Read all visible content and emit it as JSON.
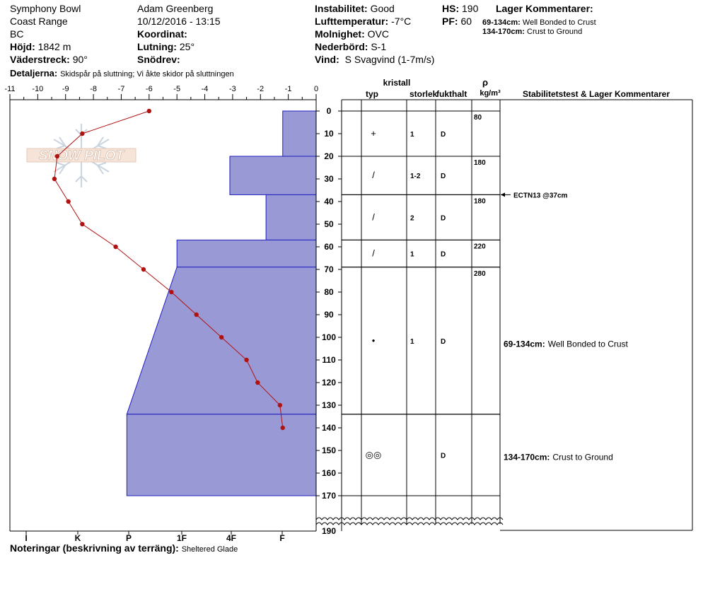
{
  "header": {
    "location": "Symphony Bowl",
    "range": "Coast Range",
    "state": "BC",
    "elevation_label": "Höjd:",
    "elevation_value": "1842 m",
    "aspect_label": "Väderstreck:",
    "aspect_value": "90°",
    "details_label": "Detaljerna:",
    "details_value": "Skidspår på sluttning;  Vi åkte skidor på sluttningen",
    "observer": "Adam Greenberg",
    "datetime": "10/12/2016 - 13:15",
    "coord_label": "Koordinat:",
    "slope_label": "Lutning:",
    "slope_value": "25°",
    "drift_label": "Snödrev:",
    "stability_label": "Instabilitet:",
    "stability_value": "Good",
    "airtemp_label": "Lufttemperatur:",
    "airtemp_value": "-7°C",
    "sky_label": "Molnighet:",
    "sky_value": "OVC",
    "precip_label": "Nederbörd:",
    "precip_value": "S-1",
    "wind_label": "Vind:",
    "wind_value": "S Svagvind (1-7m/s)",
    "hs_label": "HS:",
    "hs_value": "190",
    "pf_label": "PF:",
    "pf_value": "60",
    "layer_comments_label": "Lager Kommentarer:",
    "layer_comments": [
      {
        "range": "69-134cm:",
        "text": "Well Bonded to Crust"
      },
      {
        "range": "134-170cm:",
        "text": "Crust to Ground"
      }
    ]
  },
  "footer": {
    "notes_label": "Noteringar (beskrivning av terräng):",
    "notes_value": "Sheltered Glade"
  },
  "logo": {
    "text": "SNOW PILOT"
  },
  "columns": {
    "kristall": "kristall",
    "typ": "typ",
    "storlek": "storlek",
    "fukthalt": "fukthalt",
    "rho": "ρ",
    "density_unit": "kg/m³",
    "stability_header": "Stabilitetstest & Lager Kommentarer"
  },
  "chart_data": {
    "type": "line",
    "temperature_axis": {
      "range": [
        -11,
        0
      ],
      "ticks": [
        "-11",
        "-10",
        "-9",
        "-8",
        "-7",
        "-6",
        "-5",
        "-4",
        "-3",
        "-2",
        "-1",
        "0"
      ]
    },
    "depth_axis": {
      "range": [
        0,
        190
      ],
      "ticks": [
        "0",
        "10",
        "20",
        "30",
        "40",
        "50",
        "60",
        "70",
        "80",
        "90",
        "100",
        "110",
        "120",
        "130",
        "140",
        "150",
        "160",
        "170",
        "190"
      ]
    },
    "hardness_axis": {
      "ticks": [
        "I",
        "K",
        "P",
        "1F",
        "4F",
        "F"
      ]
    },
    "temperature_profile": {
      "depth": [
        0,
        10,
        20,
        30,
        40,
        50,
        60,
        70,
        80,
        90,
        100,
        110,
        120,
        130,
        140
      ],
      "temp": [
        -6,
        -8.4,
        -9.3,
        -9.4,
        -8.9,
        -8.4,
        -7.2,
        -6.2,
        -5.2,
        -4.3,
        -3.4,
        -2.5,
        -2.1,
        -1.3,
        -1.2
      ]
    },
    "hardness_profile": [
      {
        "top": 0,
        "bottom": 20,
        "hardness_temp": -1.2
      },
      {
        "top": 20,
        "bottom": 37,
        "hardness_temp": -3.1
      },
      {
        "top": 37,
        "bottom": 57,
        "hardness_temp": -1.8
      },
      {
        "top": 57,
        "bottom": 69,
        "hardness_temp": -5
      },
      {
        "top": 69,
        "bottom": 134,
        "hardness_temp_top": -5,
        "hardness_temp_bottom": -6.8
      },
      {
        "top": 134,
        "bottom": 170,
        "hardness_temp": -6.8
      }
    ],
    "layers": [
      {
        "top": 0,
        "bottom": 20,
        "grain": "+",
        "size": "1",
        "moisture": "D",
        "density": "80"
      },
      {
        "top": 20,
        "bottom": 37,
        "grain": "/",
        "size": "1-2",
        "moisture": "D",
        "density": "180"
      },
      {
        "top": 37,
        "bottom": 57,
        "grain": "/",
        "size": "2",
        "moisture": "D",
        "density": "180"
      },
      {
        "top": 57,
        "bottom": 69,
        "grain": "/",
        "size": "1",
        "moisture": "D",
        "density": "220"
      },
      {
        "top": 69,
        "bottom": 134,
        "grain": "•",
        "size": "1",
        "moisture": "D",
        "density": "280"
      },
      {
        "top": 134,
        "bottom": 170,
        "grain": "◎◎",
        "size": "",
        "moisture": "D",
        "density": ""
      }
    ],
    "tests": [
      {
        "depth": 37,
        "label": "ECTN13 @37cm"
      }
    ],
    "layer_comments": [
      {
        "depth": 103,
        "range": "69-134cm:",
        "text": "Well Bonded to Crust"
      },
      {
        "depth": 153,
        "range": "134-170cm:",
        "text": "Crust to Ground"
      }
    ]
  }
}
